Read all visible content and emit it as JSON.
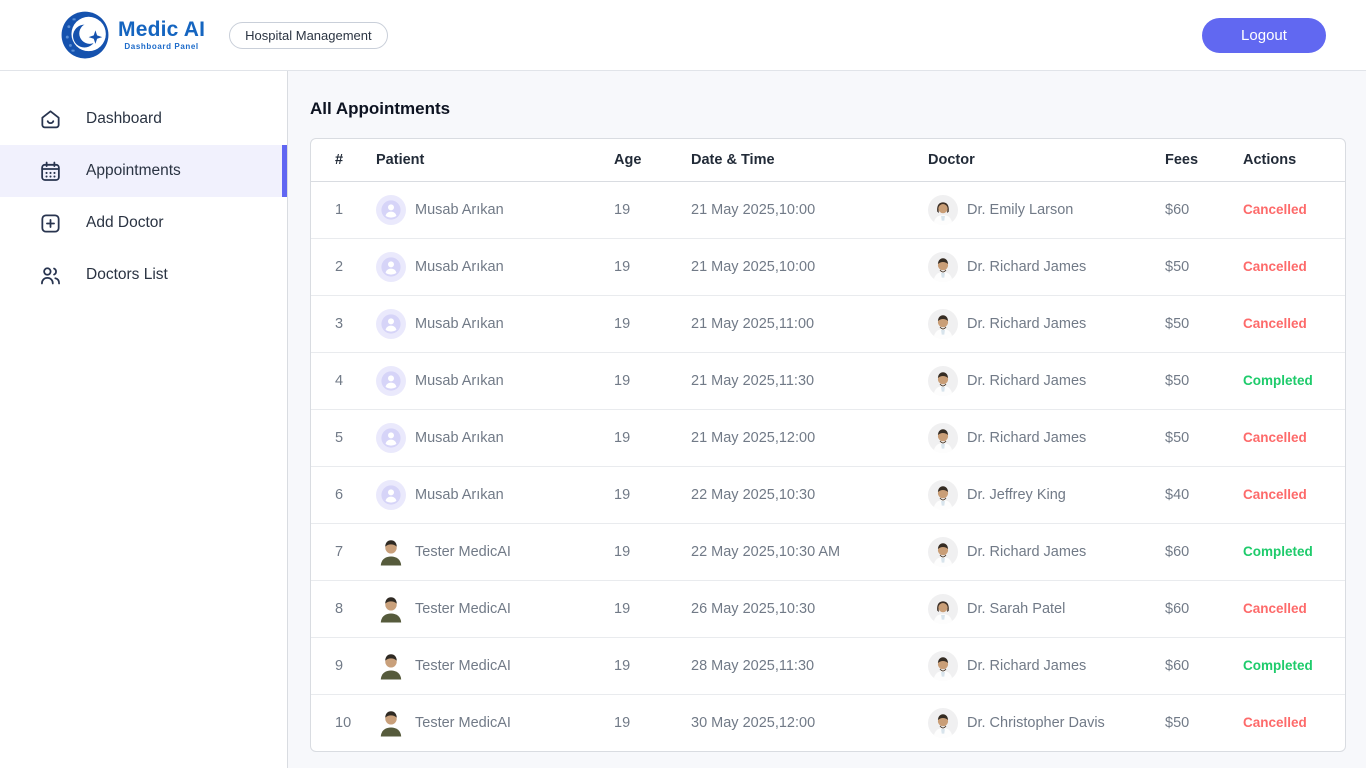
{
  "header": {
    "brand": {
      "name": "Medic AI",
      "tagline": "Dashboard Panel"
    },
    "badge": "Hospital Management",
    "logout_label": "Logout"
  },
  "sidebar": {
    "items": [
      {
        "label": "Dashboard",
        "icon": "home-icon",
        "active": false
      },
      {
        "label": "Appointments",
        "icon": "calendar-icon",
        "active": true
      },
      {
        "label": "Add Doctor",
        "icon": "add-square-icon",
        "active": false
      },
      {
        "label": "Doctors List",
        "icon": "people-icon",
        "active": false
      }
    ]
  },
  "main": {
    "title": "All Appointments",
    "table": {
      "columns": [
        "#",
        "Patient",
        "Age",
        "Date & Time",
        "Doctor",
        "Fees",
        "Actions"
      ],
      "rows": [
        {
          "num": "1",
          "patient": "Musab Arıkan",
          "patient_avatar": "user-placeholder",
          "age": "19",
          "datetime": "21 May 2025,10:00",
          "doctor": "Dr. Emily Larson",
          "doctor_avatar": "doctor-female",
          "fees": "$60",
          "status": "Cancelled"
        },
        {
          "num": "2",
          "patient": "Musab Arıkan",
          "patient_avatar": "user-placeholder",
          "age": "19",
          "datetime": "21 May 2025,10:00",
          "doctor": "Dr. Richard James",
          "doctor_avatar": "doctor-male",
          "fees": "$50",
          "status": "Cancelled"
        },
        {
          "num": "3",
          "patient": "Musab Arıkan",
          "patient_avatar": "user-placeholder",
          "age": "19",
          "datetime": "21 May 2025,11:00",
          "doctor": "Dr. Richard James",
          "doctor_avatar": "doctor-male",
          "fees": "$50",
          "status": "Cancelled"
        },
        {
          "num": "4",
          "patient": "Musab Arıkan",
          "patient_avatar": "user-placeholder",
          "age": "19",
          "datetime": "21 May 2025,11:30",
          "doctor": "Dr. Richard James",
          "doctor_avatar": "doctor-male",
          "fees": "$50",
          "status": "Completed"
        },
        {
          "num": "5",
          "patient": "Musab Arıkan",
          "patient_avatar": "user-placeholder",
          "age": "19",
          "datetime": "21 May 2025,12:00",
          "doctor": "Dr. Richard James",
          "doctor_avatar": "doctor-male",
          "fees": "$50",
          "status": "Cancelled"
        },
        {
          "num": "6",
          "patient": "Musab Arıkan",
          "patient_avatar": "user-placeholder",
          "age": "19",
          "datetime": "22 May 2025,10:30",
          "doctor": "Dr. Jeffrey King",
          "doctor_avatar": "doctor-male",
          "fees": "$40",
          "status": "Cancelled"
        },
        {
          "num": "7",
          "patient": "Tester MedicAI",
          "patient_avatar": "patient-photo",
          "age": "19",
          "datetime": "22 May 2025,10:30 AM",
          "doctor": "Dr. Richard James",
          "doctor_avatar": "doctor-male",
          "fees": "$60",
          "status": "Completed"
        },
        {
          "num": "8",
          "patient": "Tester MedicAI",
          "patient_avatar": "patient-photo",
          "age": "19",
          "datetime": "26 May 2025,10:30",
          "doctor": "Dr. Sarah Patel",
          "doctor_avatar": "doctor-female",
          "fees": "$60",
          "status": "Cancelled"
        },
        {
          "num": "9",
          "patient": "Tester MedicAI",
          "patient_avatar": "patient-photo",
          "age": "19",
          "datetime": "28 May 2025,11:30",
          "doctor": "Dr. Richard James",
          "doctor_avatar": "doctor-male",
          "fees": "$60",
          "status": "Completed"
        },
        {
          "num": "10",
          "patient": "Tester MedicAI",
          "patient_avatar": "patient-photo",
          "age": "19",
          "datetime": "30 May 2025,12:00",
          "doctor": "Dr. Christopher Davis",
          "doctor_avatar": "doctor-male",
          "fees": "$50",
          "status": "Cancelled"
        }
      ]
    }
  },
  "colors": {
    "accent": "#6168f1",
    "active_item_bg": "#f1f1fd",
    "brand_blue": "#1565c0",
    "cancelled": "#fd6a6a",
    "completed": "#1ecb6b"
  }
}
